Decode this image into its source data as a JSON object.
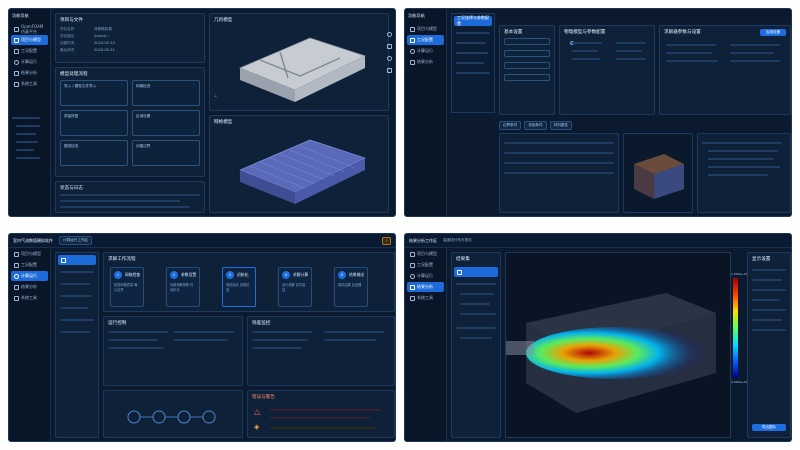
{
  "panel1": {
    "logo": "功能导航",
    "nav": [
      "OpenFOAM 仿真平台",
      "项目与模型",
      "工况配置",
      "计算运行",
      "结果分析",
      "系统工具"
    ],
    "active_index": 1,
    "title_top": "项目与文件",
    "card_top_rows": [
      [
        "项目名称",
        "冷却塔仿真"
      ],
      [
        "项目路径",
        "/home/..."
      ],
      [
        "创建时间",
        "2024-05-10"
      ],
      [
        "最后修改",
        "2024-05-21"
      ]
    ],
    "card_mid_title": "模型处理流程",
    "flow_steps": [
      "导入 / 模型文件导入",
      "网格检查",
      "质量修复",
      "区域设置",
      "模型检查",
      "创建边界"
    ],
    "footer_title": "状态与日志",
    "geom_title": "几何模型",
    "mesh_title": "网格模型"
  },
  "panel2": {
    "top_items": [
      "工况选择与参数配置"
    ],
    "left_card": "基本设置",
    "mid_card": "物理模型与参数配置",
    "right_card": "求解器参数与设置",
    "tabs": [
      "边界条件",
      "初始条件",
      "材料属性"
    ],
    "btn_apply": "应用设置"
  },
  "panel3": {
    "header": "室内气流数值模拟软件",
    "tab": "计算运行工作区",
    "section": "求解工作流程",
    "steps": [
      {
        "n": "1",
        "t": "网格检查",
        "s": "检查网格质量\n确认边界"
      },
      {
        "n": "2",
        "t": "参数设置",
        "s": "设置求解参数\n时间步长"
      },
      {
        "n": "3",
        "t": "初始化",
        "s": "场初始化\n设置初值"
      },
      {
        "n": "4",
        "t": "求解计算",
        "s": "运行求解\n实时监控"
      },
      {
        "n": "5",
        "t": "结果输出",
        "s": "保存结果\n后处理"
      }
    ],
    "monitor": "运行控制",
    "residual": "残差监控",
    "alert": "错误与警告"
  },
  "panel4": {
    "title": "结果分析工作区",
    "subtitle": "温度场分布可视化",
    "left_title": "结果集",
    "right_title": "显示设置",
    "scale_max": "1.500e+00",
    "scale_min": "0.000e+00",
    "btn_export": "导出图片"
  },
  "colors": {
    "accent": "#1e6ee0",
    "bg": "#0b1a2e"
  }
}
